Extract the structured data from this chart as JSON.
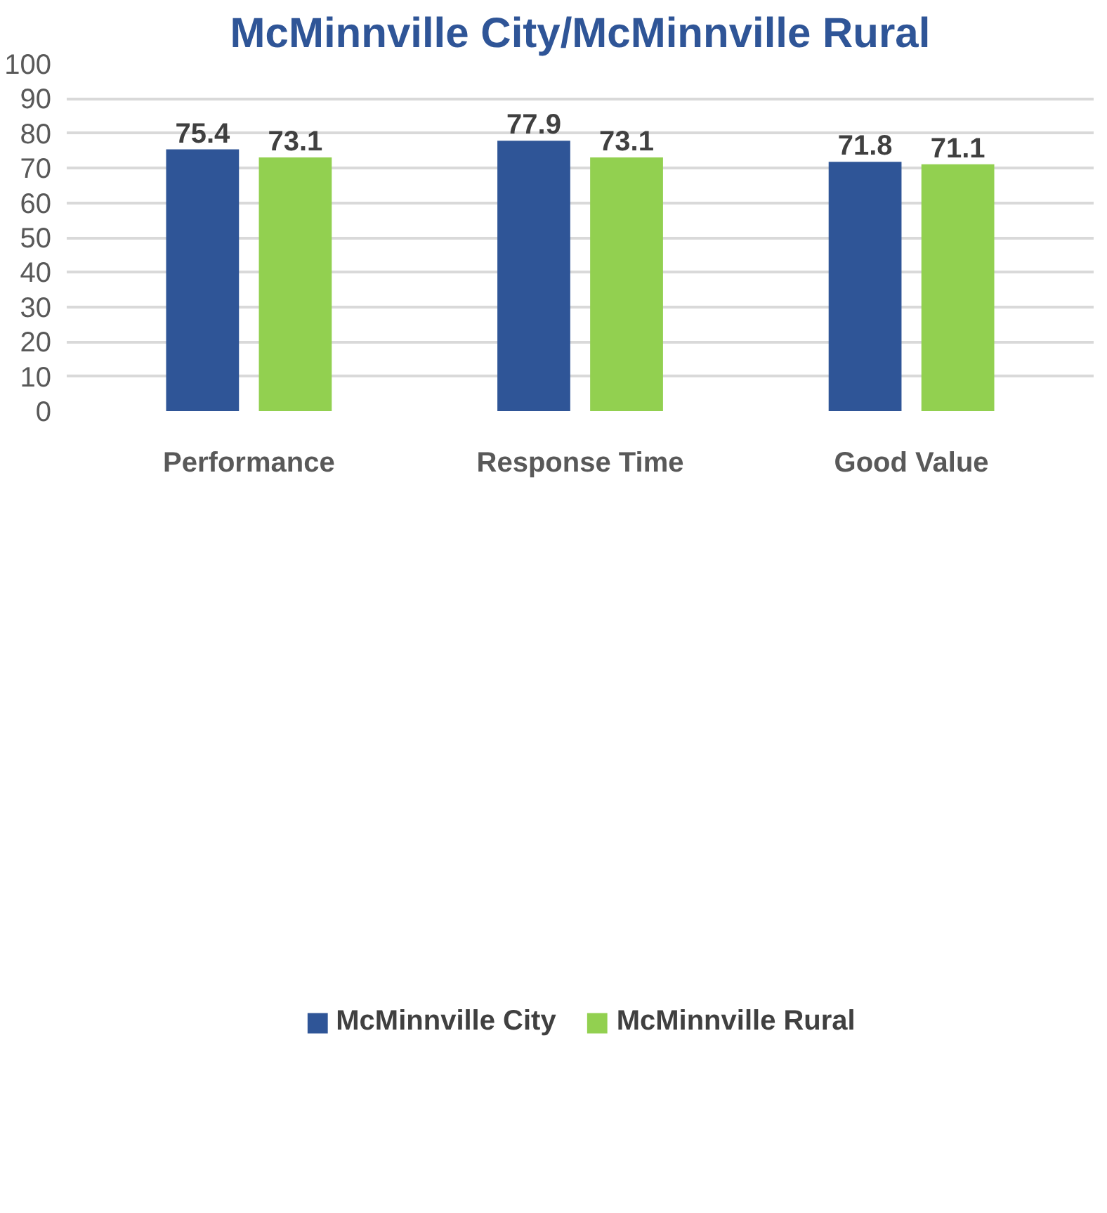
{
  "chart_data": {
    "type": "bar",
    "title": "McMinnville City/McMinnville Rural",
    "categories": [
      "Performance",
      "Response Time",
      "Good Value"
    ],
    "series": [
      {
        "name": "McMinnville City",
        "color": "#2f5597",
        "values": [
          75.4,
          77.9,
          71.8
        ]
      },
      {
        "name": "McMinnville Rural",
        "color": "#92d050",
        "values": [
          73.1,
          73.1,
          71.1
        ]
      }
    ],
    "ylim": [
      0,
      100
    ],
    "yticks": [
      0,
      10,
      20,
      30,
      40,
      50,
      60,
      70,
      80,
      90,
      100
    ],
    "grid": "y",
    "legend": "bottom",
    "data_labels": true
  }
}
